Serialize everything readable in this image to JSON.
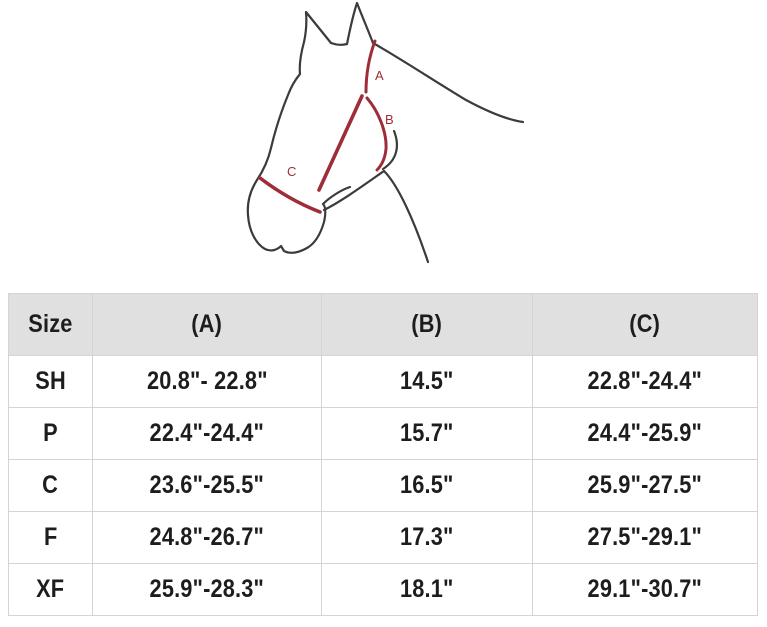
{
  "diagram": {
    "strap_labels": {
      "a": "A",
      "b": "B",
      "c": "C"
    },
    "colors": {
      "outline": "#3b3b3b",
      "strap": "#9f2d39"
    }
  },
  "table": {
    "colors": {
      "header_bg": "#e0e0e0",
      "border": "#d4d4d4",
      "text": "#1d1d1d"
    },
    "headers": [
      "Size",
      "(A)",
      "(B)",
      "(C)"
    ],
    "rows": [
      [
        "SH",
        "20.8\"- 22.8\"",
        "14.5\"",
        "22.8\"-24.4\""
      ],
      [
        "P",
        "22.4\"-24.4\"",
        "15.7\"",
        "24.4\"-25.9\""
      ],
      [
        "C",
        "23.6\"-25.5\"",
        "16.5\"",
        "25.9\"-27.5\""
      ],
      [
        "F",
        "24.8\"-26.7\"",
        "17.3\"",
        "27.5\"-29.1\""
      ],
      [
        "XF",
        "25.9\"-28.3\"",
        "18.1\"",
        "29.1\"-30.7\""
      ]
    ]
  }
}
